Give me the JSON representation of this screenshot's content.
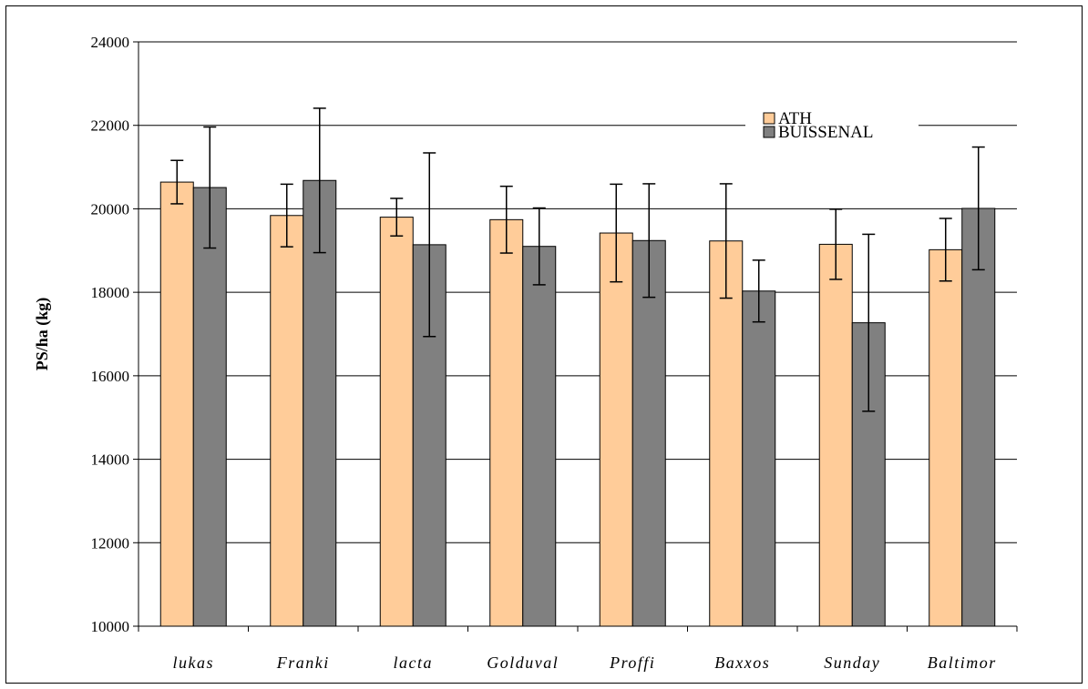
{
  "chart_data": {
    "type": "bar",
    "title": "",
    "xlabel": "",
    "ylabel": "PS/ha (kg)",
    "ylim": [
      10000,
      24000
    ],
    "yticks": [
      10000,
      12000,
      14000,
      16000,
      18000,
      20000,
      22000,
      24000
    ],
    "grid": true,
    "legend_position": "top-right",
    "categories": [
      "lukas",
      "Franki",
      "lacta",
      "Golduval",
      "Proffi",
      "Baxxos",
      "Sunday",
      "Baltimor"
    ],
    "series": [
      {
        "name": "ATH",
        "color": "#FFCC99",
        "values": [
          20640,
          19840,
          19800,
          19740,
          19420,
          19230,
          19150,
          19020
        ],
        "error": [
          520,
          750,
          450,
          800,
          1170,
          1370,
          840,
          750
        ]
      },
      {
        "name": "BUISSENAL",
        "color": "#808080",
        "values": [
          20510,
          20680,
          19140,
          19100,
          19240,
          18030,
          17270,
          20010
        ],
        "error": [
          1450,
          1730,
          2200,
          920,
          1360,
          740,
          2120,
          1470
        ]
      }
    ]
  }
}
